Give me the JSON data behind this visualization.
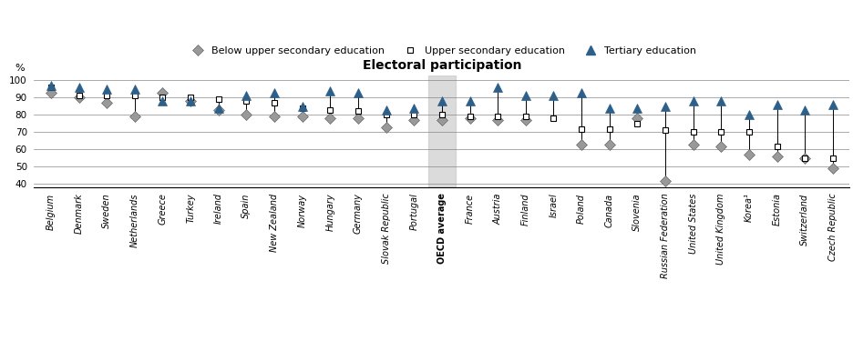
{
  "title": "Electoral participation",
  "ylabel": "%",
  "ylim": [
    38,
    103
  ],
  "yticks": [
    40,
    50,
    60,
    70,
    80,
    90,
    100
  ],
  "countries": [
    "Belgium",
    "Denmark",
    "Sweden",
    "Netherlands",
    "Greece",
    "Turkey",
    "Ireland",
    "Spain",
    "New Zealand",
    "Norway",
    "Hungary",
    "Germany",
    "Slovak Republic",
    "Portugal",
    "OECD average",
    "France",
    "Austria",
    "Finland",
    "Israel",
    "Poland",
    "Canada",
    "Slovenia",
    "Russian Federation",
    "United States",
    "United Kingdom",
    "Korea¹",
    "Estonia",
    "Switzerland",
    "Czech Republic"
  ],
  "below_upper": [
    93,
    90,
    87,
    79,
    93,
    88,
    83,
    80,
    79,
    79,
    78,
    78,
    73,
    77,
    77,
    78,
    77,
    77,
    null,
    63,
    63,
    78,
    42,
    63,
    62,
    57,
    56,
    55,
    49
  ],
  "upper": [
    96,
    91,
    91,
    91,
    90,
    90,
    89,
    88,
    87,
    84,
    83,
    82,
    80,
    80,
    80,
    79,
    79,
    79,
    78,
    72,
    72,
    75,
    71,
    70,
    70,
    70,
    62,
    55,
    55
  ],
  "tertiary": [
    97,
    96,
    95,
    95,
    88,
    88,
    84,
    91,
    93,
    85,
    94,
    93,
    83,
    84,
    88,
    88,
    96,
    91,
    91,
    93,
    84,
    84,
    85,
    88,
    88,
    80,
    86,
    83,
    86
  ],
  "oecd_avg_index": 14,
  "legend_labels": [
    "Below upper secondary education",
    "Upper secondary education",
    "Tertiary education"
  ],
  "below_color": "#999999",
  "upper_color": "#ffffff",
  "tertiary_color": "#2c5f8a",
  "line_color": "#000000",
  "oecd_bg_color": "#cccccc",
  "grid_color": "#888888"
}
